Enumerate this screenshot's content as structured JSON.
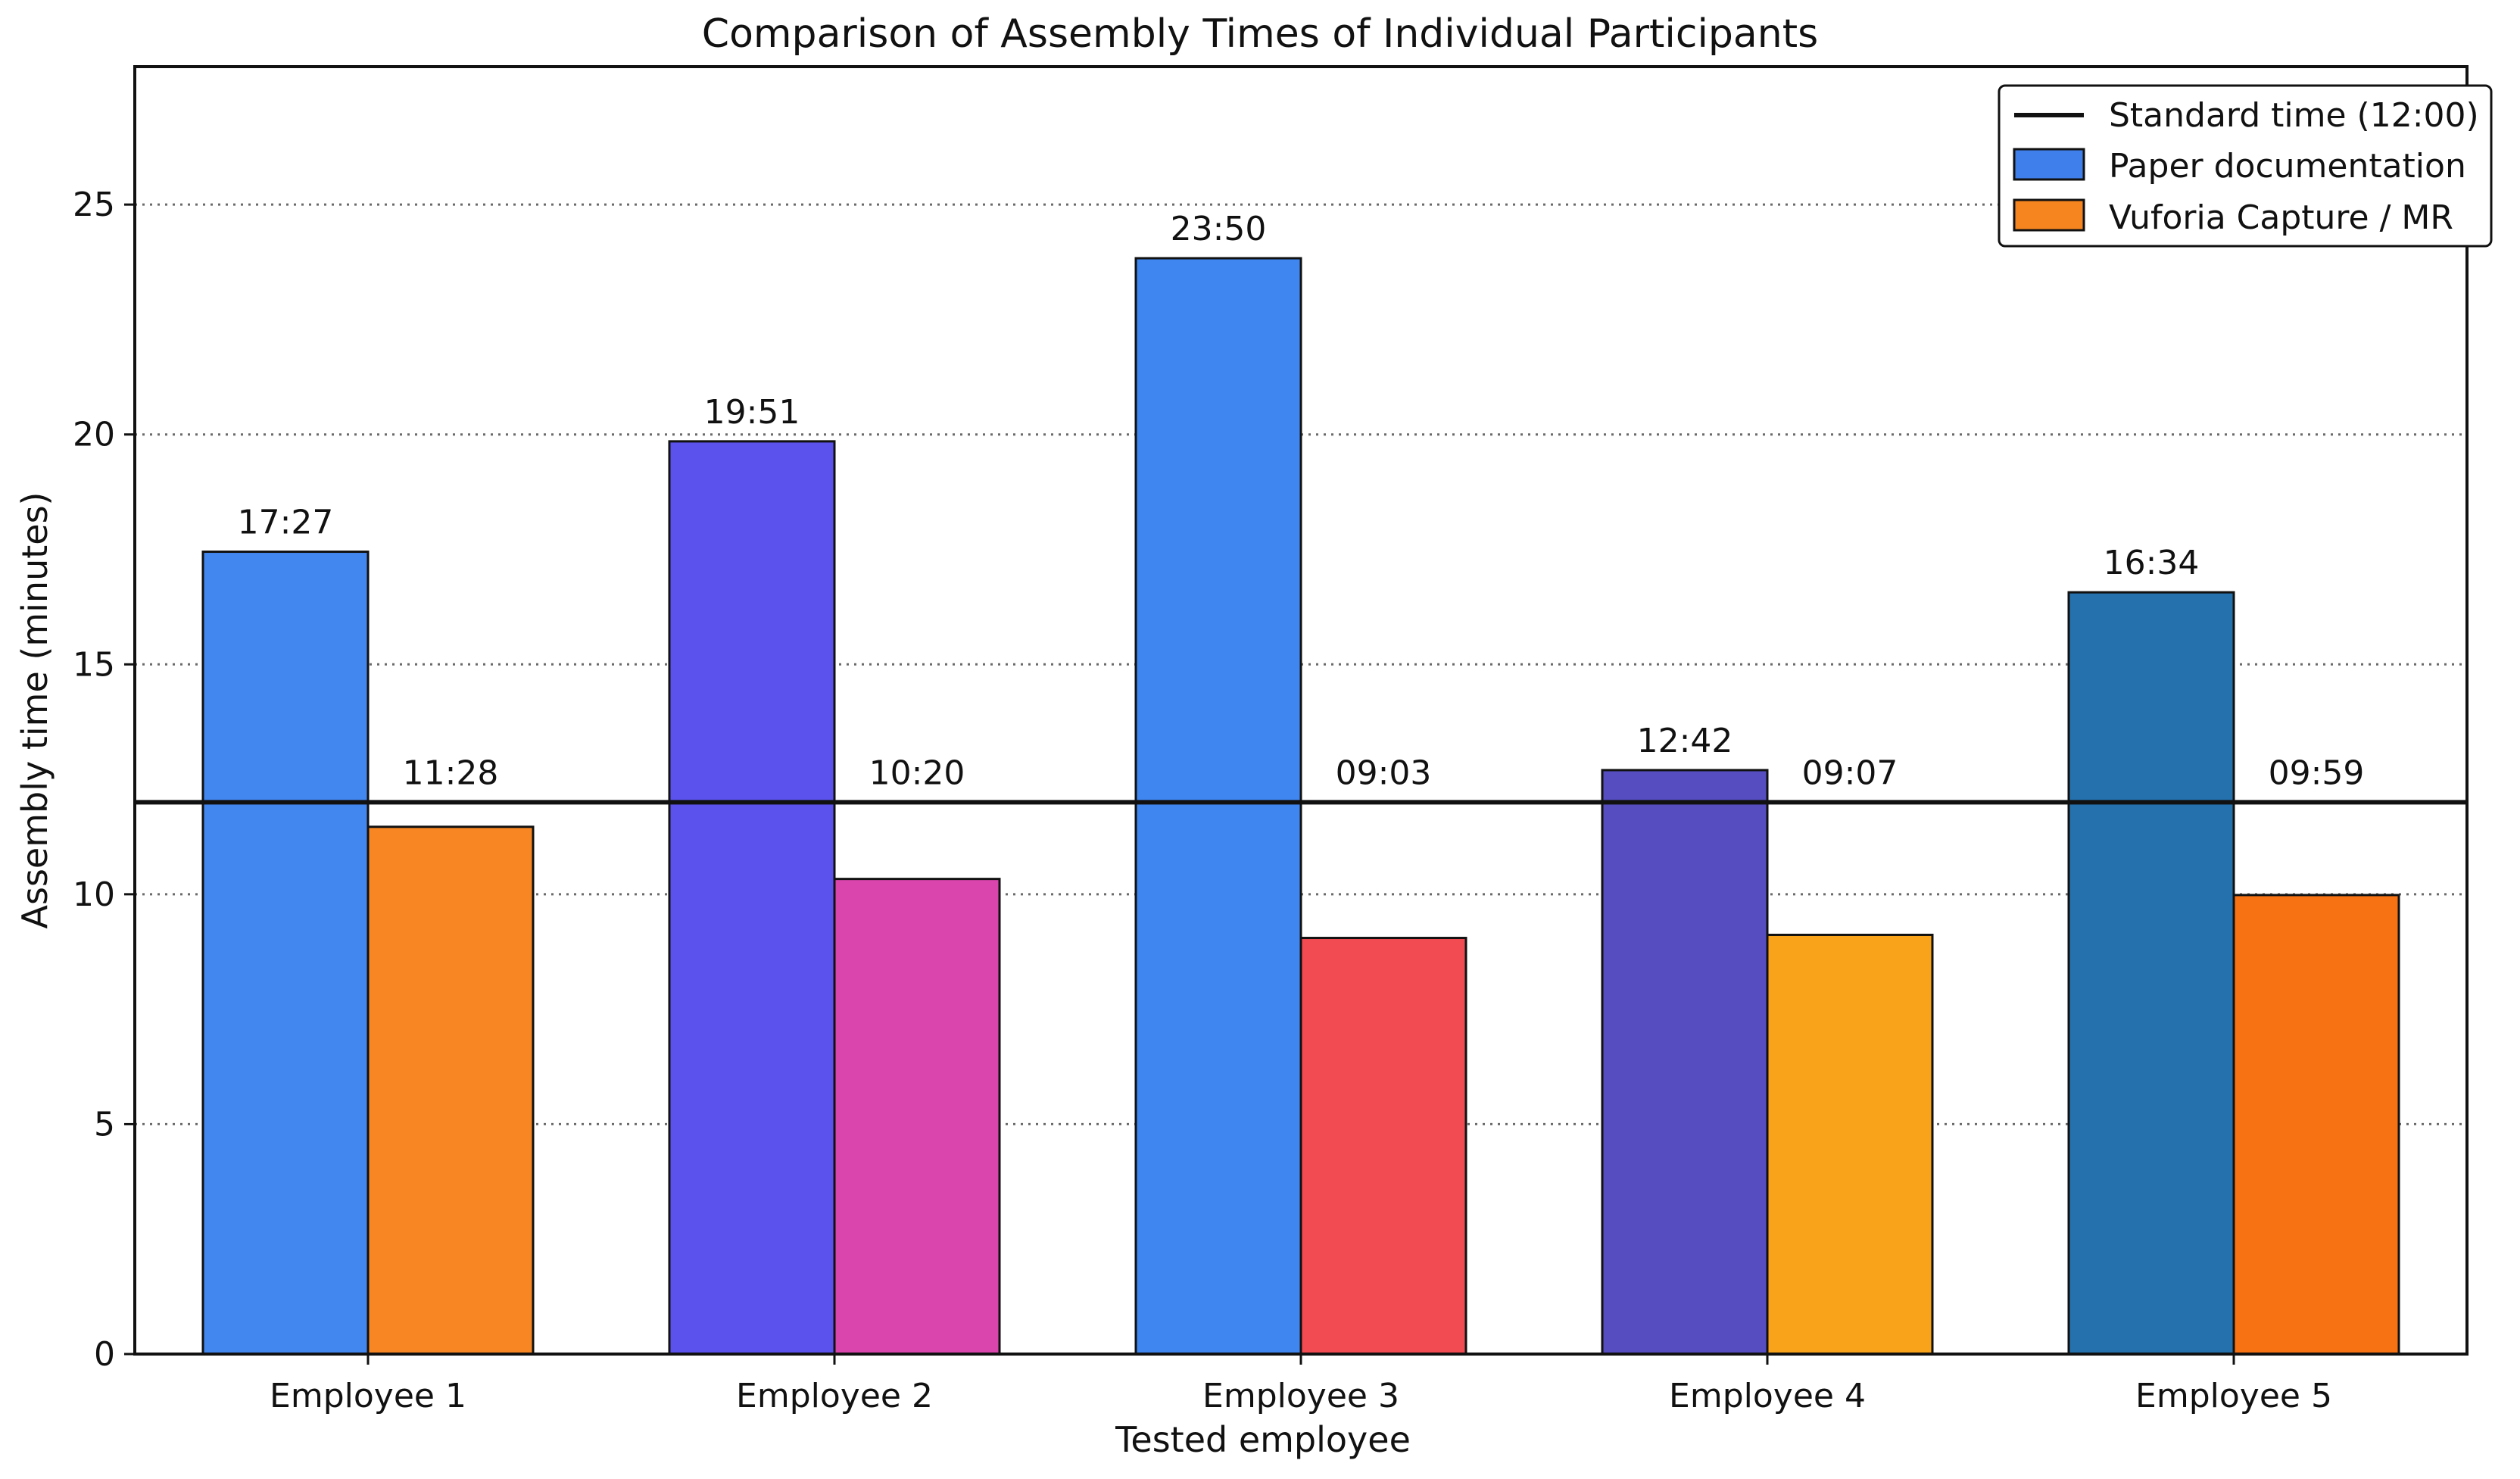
{
  "chart_data": {
    "type": "bar",
    "title": "Comparison of Assembly Times of Individual Participants",
    "xlabel": "Tested employee",
    "ylabel": "Assembly time (minutes)",
    "categories": [
      "Employee 1",
      "Employee 2",
      "Employee 3",
      "Employee 4",
      "Employee 5"
    ],
    "ylim": [
      0,
      28
    ],
    "yticks": [
      0,
      5,
      10,
      15,
      20,
      25
    ],
    "grid": "horizontal dotted",
    "legend_position": "top-right",
    "reference_line": {
      "label": "Standard time (12:00)",
      "value": 12,
      "color": "#111111"
    },
    "series": [
      {
        "name": "Paper documentation",
        "legend_color": "#3f7fec",
        "values": [
          17.45,
          19.85,
          23.833,
          12.7,
          16.567
        ],
        "labels": [
          "17:27",
          "19:51",
          "23:50",
          "12:42",
          "16:34"
        ],
        "colors": [
          "#4286f0",
          "#5b52ee",
          "#3f86f0",
          "#554dc0",
          "#2471ad"
        ]
      },
      {
        "name": "Vuforia Capture / MR",
        "legend_color": "#f6851f",
        "values": [
          11.467,
          10.333,
          9.05,
          9.117,
          9.983
        ],
        "labels": [
          "11:28",
          "10:20",
          "09:03",
          "09:07",
          "09:59"
        ],
        "colors": [
          "#f88723",
          "#da45ad",
          "#f34b52",
          "#f8a319",
          "#f67213"
        ]
      }
    ]
  }
}
